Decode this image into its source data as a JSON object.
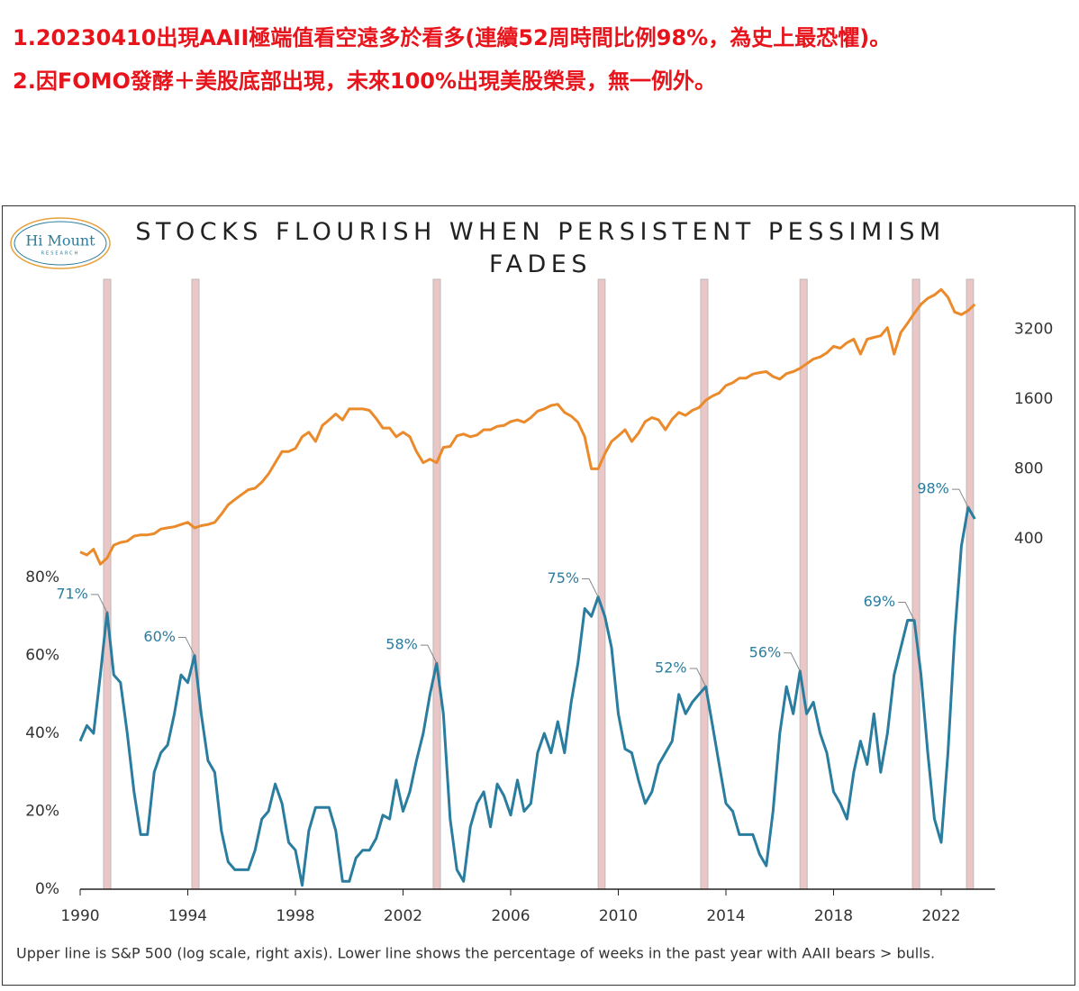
{
  "notes": [
    "1.20230410出現AAII極端值看空遠多於看多(連續52周時間比例98%，為史上最恐懼)。",
    "2.因FOMO發酵＋美股底部出現，未來100%出現美股榮景，無一例外。"
  ],
  "logo": {
    "name": "Hi Mount",
    "sub": "RESEARCH"
  },
  "chart_data": {
    "type": "line",
    "title": "STOCKS FLOURISH WHEN PERSISTENT PESSIMISM FADES",
    "footnote": "Upper line is S&P 500 (log scale, right axis). Lower line shows the percentage of weeks in the past year with AAII bears > bulls.",
    "x": [
      1990,
      1990.25,
      1990.5,
      1990.75,
      1991,
      1991.25,
      1991.5,
      1991.75,
      1992,
      1992.25,
      1992.5,
      1992.75,
      1993,
      1993.25,
      1993.5,
      1993.75,
      1994,
      1994.25,
      1994.5,
      1994.75,
      1995,
      1995.25,
      1995.5,
      1995.75,
      1996,
      1996.25,
      1996.5,
      1996.75,
      1997,
      1997.25,
      1997.5,
      1997.75,
      1998,
      1998.25,
      1998.5,
      1998.75,
      1999,
      1999.25,
      1999.5,
      1999.75,
      2000,
      2000.25,
      2000.5,
      2000.75,
      2001,
      2001.25,
      2001.5,
      2001.75,
      2002,
      2002.25,
      2002.5,
      2002.75,
      2003,
      2003.25,
      2003.5,
      2003.75,
      2004,
      2004.25,
      2004.5,
      2004.75,
      2005,
      2005.25,
      2005.5,
      2005.75,
      2006,
      2006.25,
      2006.5,
      2006.75,
      2007,
      2007.25,
      2007.5,
      2007.75,
      2008,
      2008.25,
      2008.5,
      2008.75,
      2009,
      2009.25,
      2009.5,
      2009.75,
      2010,
      2010.25,
      2010.5,
      2010.75,
      2011,
      2011.25,
      2011.5,
      2011.75,
      2012,
      2012.25,
      2012.5,
      2012.75,
      2013,
      2013.25,
      2013.5,
      2013.75,
      2014,
      2014.25,
      2014.5,
      2014.75,
      2015,
      2015.25,
      2015.5,
      2015.75,
      2016,
      2016.25,
      2016.5,
      2016.75,
      2017,
      2017.25,
      2017.5,
      2017.75,
      2018,
      2018.25,
      2018.5,
      2018.75,
      2019,
      2019.25,
      2019.5,
      2019.75,
      2020,
      2020.25,
      2020.5,
      2020.75,
      2021,
      2021.25,
      2021.5,
      2021.75,
      2022,
      2022.25,
      2022.5,
      2022.75,
      2023,
      2023.25
    ],
    "series": [
      {
        "color": "#2a7d9e",
        "axis": "y",
        "values": [
          38,
          42,
          40,
          55,
          71,
          55,
          53,
          40,
          25,
          14,
          14,
          30,
          35,
          37,
          45,
          55,
          53,
          60,
          45,
          33,
          30,
          15,
          7,
          5,
          5,
          5,
          10,
          18,
          20,
          27,
          22,
          12,
          10,
          1,
          15,
          21,
          21,
          21,
          15,
          2,
          2,
          8,
          10,
          10,
          13,
          19,
          18,
          28,
          20,
          25,
          33,
          40,
          50,
          58,
          45,
          18,
          5,
          2,
          16,
          22,
          25,
          16,
          27,
          24,
          19,
          28,
          20,
          22,
          35,
          40,
          35,
          43,
          35,
          48,
          58,
          72,
          70,
          75,
          70,
          62,
          45,
          36,
          35,
          28,
          22,
          25,
          32,
          35,
          38,
          50,
          45,
          48,
          50,
          52,
          42,
          32,
          22,
          20,
          14,
          14,
          14,
          9,
          6,
          20,
          40,
          52,
          45,
          56,
          45,
          48,
          40,
          35,
          25,
          22,
          18,
          30,
          38,
          32,
          45,
          30,
          40,
          55,
          62,
          69,
          69,
          55,
          35,
          18,
          12,
          35,
          65,
          88,
          98,
          95
        ]
      },
      {
        "color": "#ea8a2a",
        "axis": "y2",
        "values": [
          350,
          340,
          360,
          310,
          330,
          375,
          385,
          390,
          410,
          415,
          415,
          420,
          440,
          445,
          450,
          460,
          470,
          445,
          455,
          460,
          470,
          510,
          560,
          590,
          620,
          650,
          660,
          700,
          760,
          850,
          950,
          950,
          980,
          1100,
          1150,
          1050,
          1230,
          1300,
          1380,
          1300,
          1450,
          1450,
          1450,
          1430,
          1320,
          1200,
          1200,
          1100,
          1150,
          1100,
          950,
          850,
          880,
          850,
          990,
          1000,
          1110,
          1130,
          1100,
          1120,
          1180,
          1180,
          1220,
          1230,
          1280,
          1300,
          1270,
          1330,
          1420,
          1450,
          1500,
          1520,
          1400,
          1350,
          1270,
          1100,
          800,
          800,
          930,
          1050,
          1110,
          1180,
          1050,
          1140,
          1280,
          1330,
          1300,
          1180,
          1310,
          1400,
          1360,
          1430,
          1470,
          1580,
          1650,
          1700,
          1830,
          1880,
          1970,
          1970,
          2050,
          2080,
          2100,
          2000,
          1950,
          2060,
          2100,
          2170,
          2270,
          2380,
          2430,
          2530,
          2700,
          2650,
          2800,
          2900,
          2500,
          2900,
          2950,
          3000,
          3250,
          2500,
          3100,
          3400,
          3750,
          4100,
          4350,
          4500,
          4750,
          4400,
          3800,
          3700,
          3850,
          4100
        ]
      }
    ],
    "xlim": [
      1990,
      2024
    ],
    "xticks": [
      1990,
      1994,
      1998,
      2002,
      2006,
      2010,
      2014,
      2018,
      2022
    ],
    "ylim": [
      0,
      156.5
    ],
    "yticks": [
      {
        "value": 0,
        "label": "0%"
      },
      {
        "value": 20,
        "label": "20%"
      },
      {
        "value": 40,
        "label": "40%"
      },
      {
        "value": 60,
        "label": "60%"
      },
      {
        "value": 80,
        "label": "80%"
      }
    ],
    "y2lim": [
      12.3,
      5256
    ],
    "y2ticks": [
      400,
      800,
      1600,
      3200
    ],
    "y2log": true,
    "highlights": [
      [
        1990.87,
        1991.14
      ],
      [
        1994.15,
        1994.42
      ],
      [
        2003.12,
        2003.39
      ],
      [
        2009.25,
        2009.51
      ],
      [
        2013.06,
        2013.33
      ],
      [
        2016.75,
        2017.02
      ],
      [
        2020.93,
        2021.2
      ],
      [
        2022.94,
        2023.2
      ]
    ],
    "highlight_color": "#eac6c6",
    "annotations": [
      {
        "text": "71%",
        "x": 1991,
        "y": 71
      },
      {
        "text": "60%",
        "x": 1994.25,
        "y": 60
      },
      {
        "text": "58%",
        "x": 2003.25,
        "y": 58
      },
      {
        "text": "75%",
        "x": 2009.25,
        "y": 75
      },
      {
        "text": "52%",
        "x": 2013.25,
        "y": 52
      },
      {
        "text": "56%",
        "x": 2016.75,
        "y": 56
      },
      {
        "text": "69%",
        "x": 2021,
        "y": 69
      },
      {
        "text": "98%",
        "x": 2023,
        "y": 98
      }
    ]
  }
}
